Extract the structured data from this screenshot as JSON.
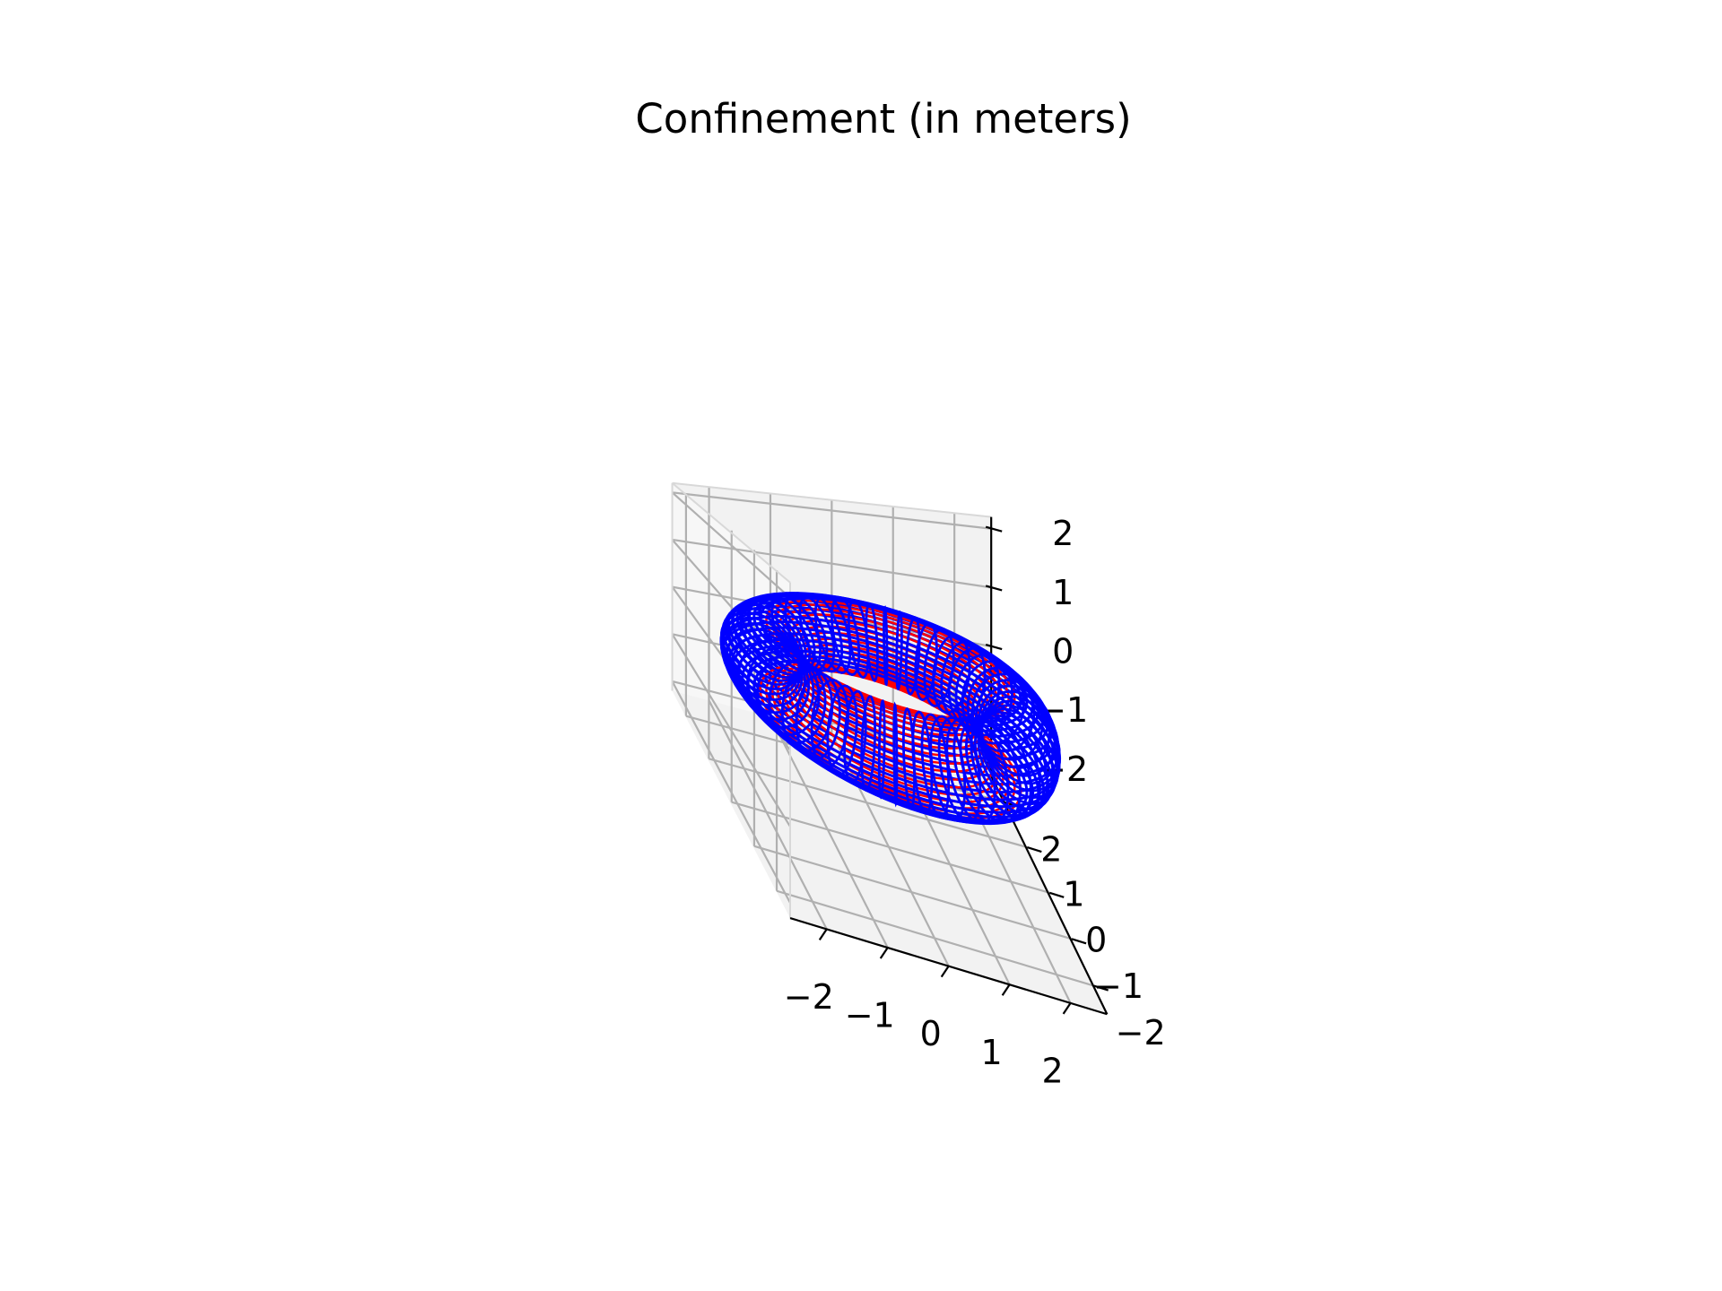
{
  "chart_data": {
    "type": "3d-wireframe-torus",
    "title": "Confinement (in meters)",
    "xlabel": "",
    "ylabel": "",
    "zlabel": "",
    "grid": true,
    "legend": "none",
    "xlim": [
      -2.6,
      2.6
    ],
    "ylim": [
      -2.6,
      2.6
    ],
    "zlim": [
      -2.2,
      2.2
    ],
    "x_ticks": [
      -2,
      -1,
      0,
      1,
      2
    ],
    "x_tick_labels": [
      "−2",
      "−1",
      "0",
      "1",
      "2"
    ],
    "y_ticks": [
      -2,
      -1,
      0,
      1,
      2
    ],
    "y_tick_labels": [
      "−2",
      "−1",
      "0",
      "1",
      "2"
    ],
    "z_ticks": [
      -2,
      -1,
      0,
      1,
      2
    ],
    "z_tick_labels": [
      "−2",
      "−1",
      "0",
      "1",
      "2"
    ],
    "surface": {
      "kind": "torus",
      "major_radius": 2,
      "minor_radius": 0.6,
      "center": [
        0,
        0,
        0
      ],
      "longitudinal_rings": 40,
      "poloidal_sections": 60
    },
    "series": [
      {
        "color": "#0000ff",
        "role": "torus wireframe"
      },
      {
        "color": "#ff0000",
        "role": "inner field lines"
      }
    ]
  }
}
